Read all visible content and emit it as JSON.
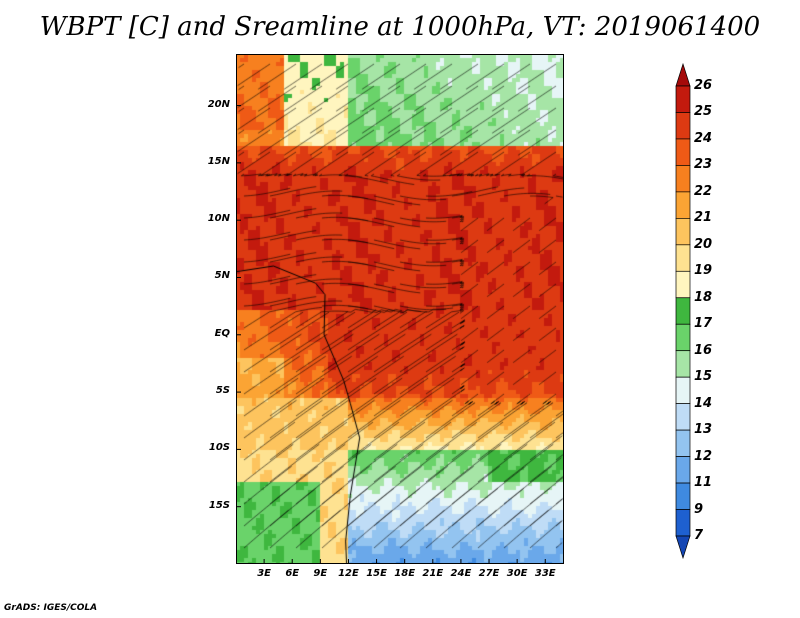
{
  "title": "WBPT [C] and Sreamline at 1000hPa, VT: 2019061400",
  "footer": "GrADS: IGES/COLA",
  "map": {
    "lat_range": [
      -20,
      24.5
    ],
    "lon_range": [
      0,
      35
    ],
    "lat_ticks": [
      {
        "lat": 20,
        "label": "20N"
      },
      {
        "lat": 15,
        "label": "15N"
      },
      {
        "lat": 10,
        "label": "10N"
      },
      {
        "lat": 5,
        "label": "5N"
      },
      {
        "lat": 0,
        "label": "EQ"
      },
      {
        "lat": -5,
        "label": "5S"
      },
      {
        "lat": -10,
        "label": "10S"
      },
      {
        "lat": -15,
        "label": "15S"
      }
    ],
    "lon_ticks": [
      {
        "lon": 3,
        "label": "3E"
      },
      {
        "lon": 6,
        "label": "6E"
      },
      {
        "lon": 9,
        "label": "9E"
      },
      {
        "lon": 12,
        "label": "12E"
      },
      {
        "lon": 15,
        "label": "15E"
      },
      {
        "lon": 18,
        "label": "18E"
      },
      {
        "lon": 21,
        "label": "21E"
      },
      {
        "lon": 24,
        "label": "24E"
      },
      {
        "lon": 27,
        "label": "27E"
      },
      {
        "lon": 30,
        "label": "30E"
      },
      {
        "lon": 33,
        "label": "33E"
      }
    ]
  },
  "colorbar": {
    "levels": [
      "26",
      "25",
      "24",
      "23",
      "22",
      "21",
      "20",
      "19",
      "18",
      "17",
      "16",
      "15",
      "14",
      "13",
      "12",
      "11",
      "9",
      "7"
    ],
    "colors": [
      "#a50a0a",
      "#c31a0e",
      "#dd3a12",
      "#ef5a16",
      "#f7801f",
      "#fba434",
      "#fdc45e",
      "#fee291",
      "#fff5bf",
      "#3fb73f",
      "#6ad36a",
      "#a6e5a6",
      "#e6f5f6",
      "#bfdcf6",
      "#93c4f0",
      "#6aa8ea",
      "#3f8ae0",
      "#1e60d0",
      "#1446b4"
    ]
  }
}
